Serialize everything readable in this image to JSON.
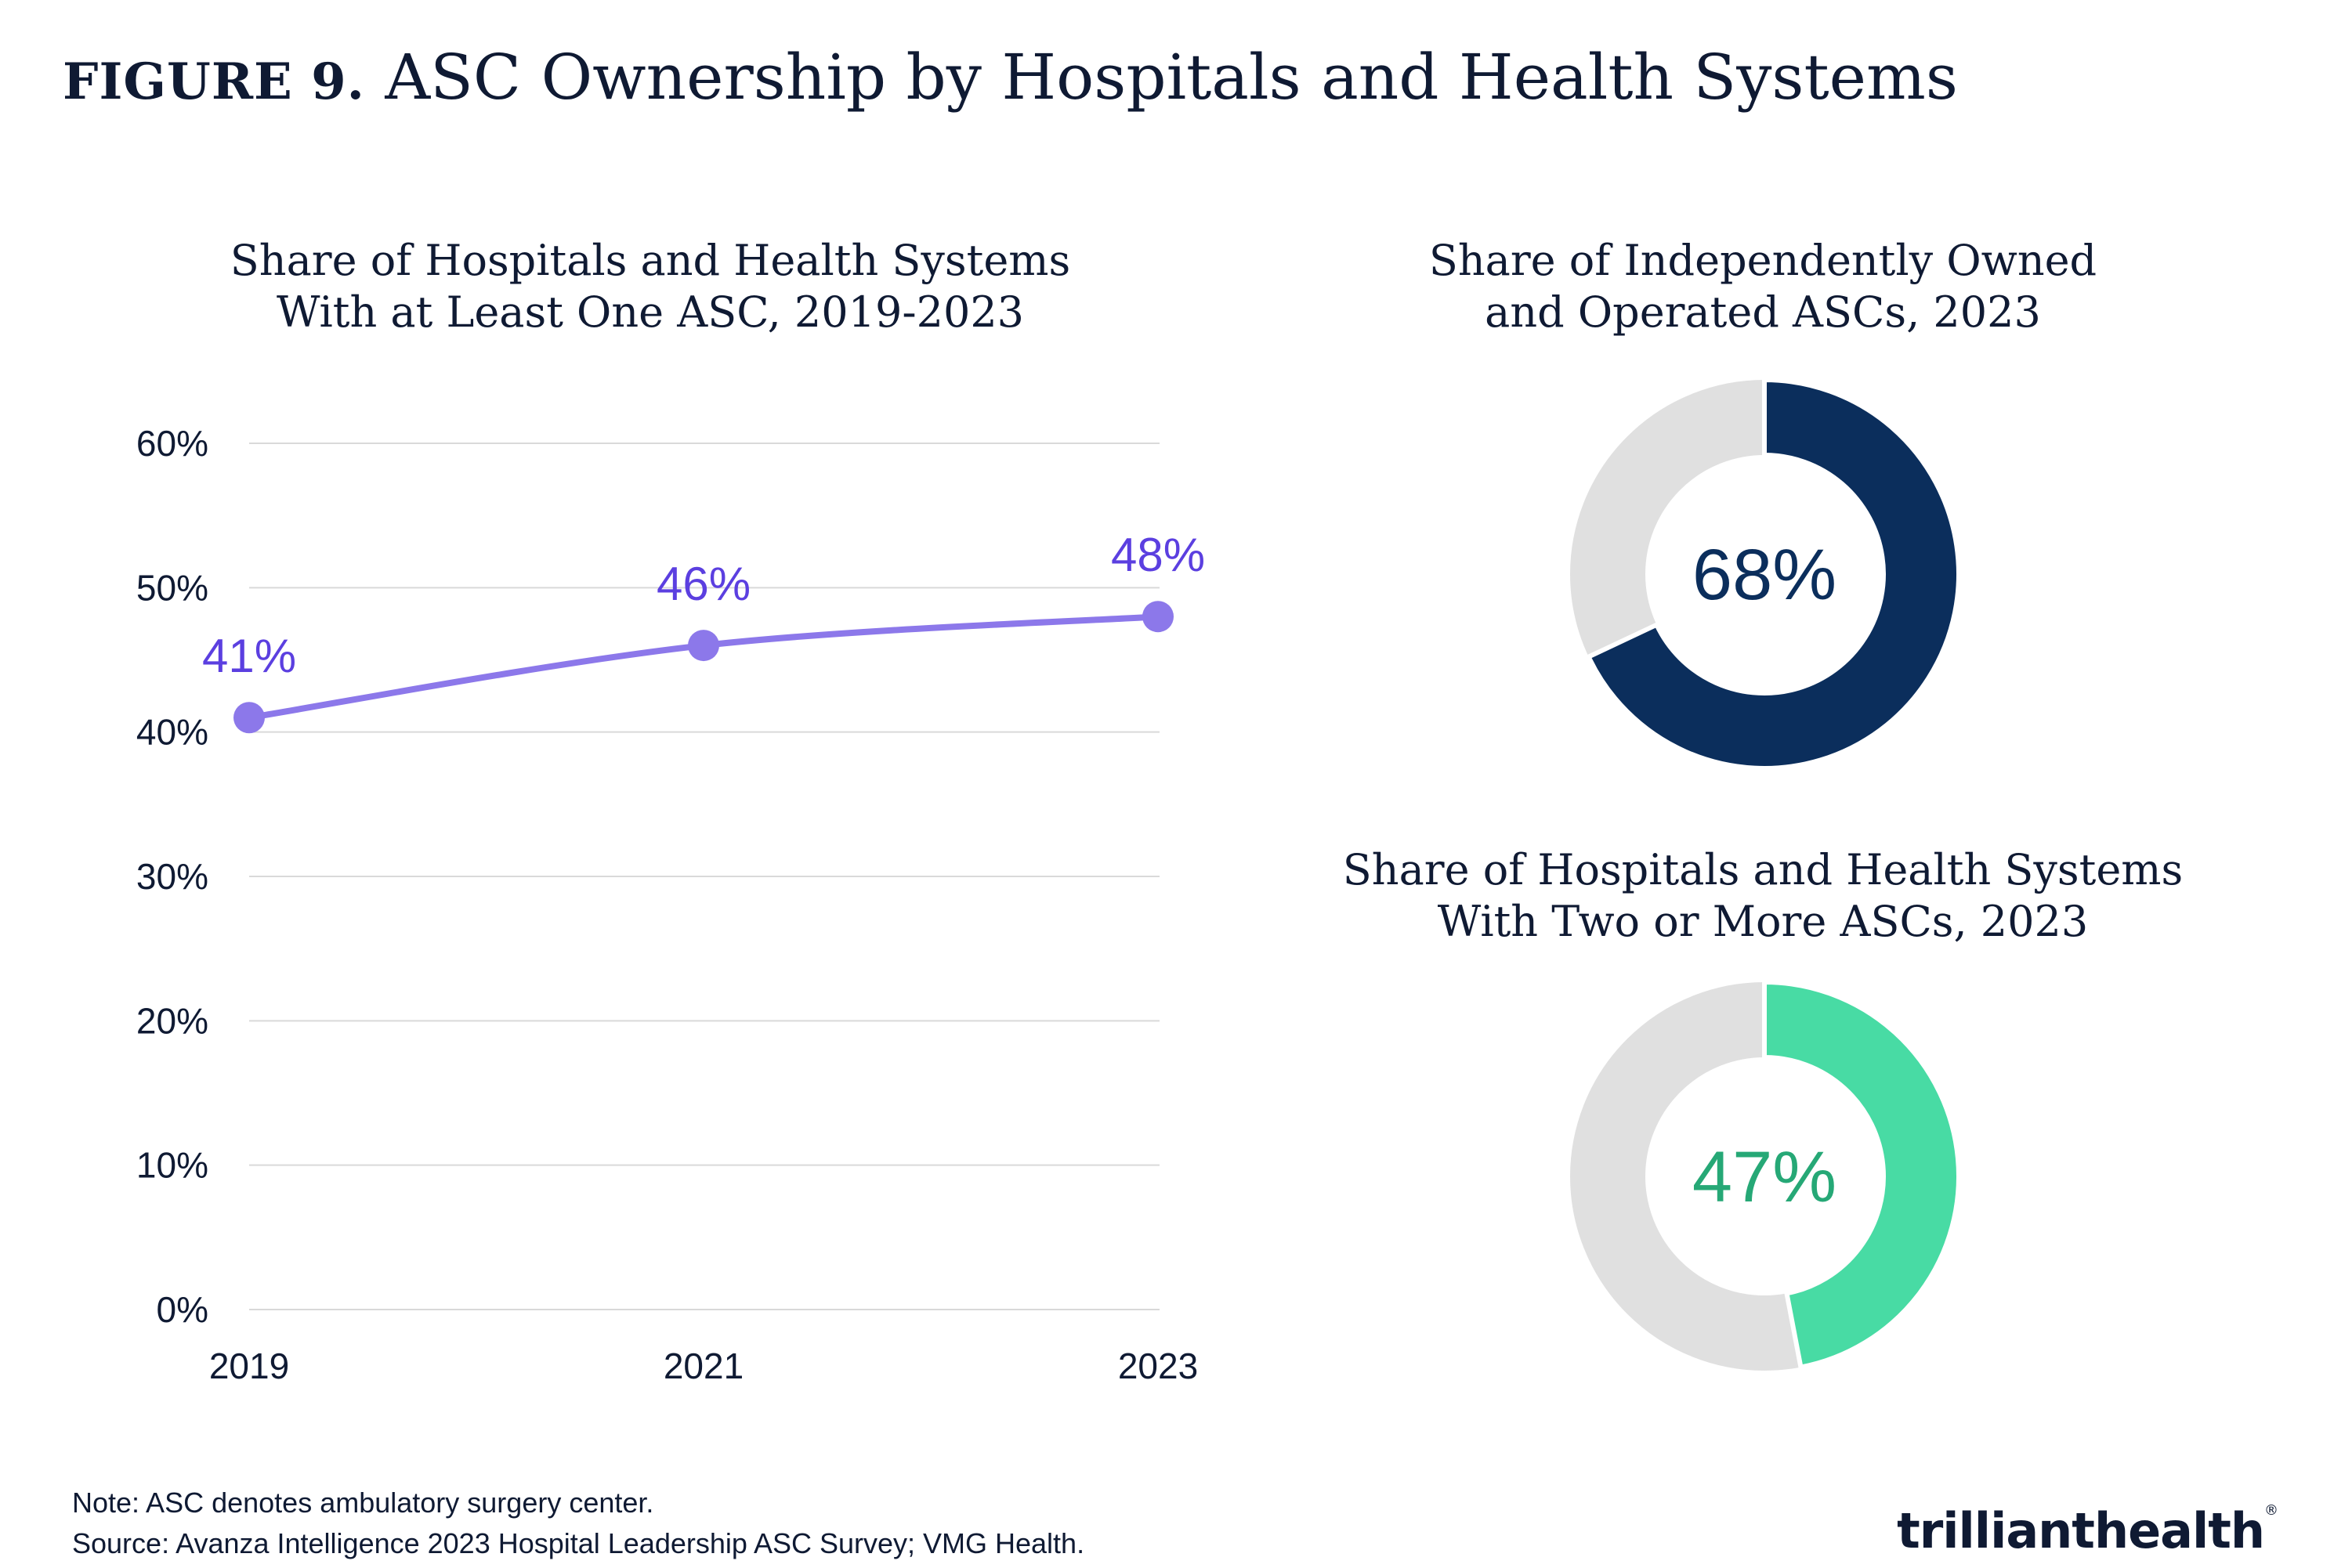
{
  "header": {
    "figure_label": "FIGURE 9.",
    "title": "ASC Ownership by Hospitals and Health Systems"
  },
  "colors": {
    "line": "#8c78ea",
    "line_label": "#5b3fe0",
    "grid": "#d9d9d9",
    "donut_track": "#e0e0e0",
    "donut1_fill": "#0b2e5c",
    "donut2_fill": "#48dba4",
    "donut2_text": "#26a876"
  },
  "chart_data": [
    {
      "type": "line",
      "title_line1": "Share of Hospitals and Health Systems",
      "title_line2": "With at Least One ASC, 2019-2023",
      "x": [
        "2019",
        "2021",
        "2023"
      ],
      "values": [
        41,
        46,
        48
      ],
      "data_labels": [
        "41%",
        "46%",
        "48%"
      ],
      "y_ticks": [
        0,
        10,
        20,
        30,
        40,
        50,
        60
      ],
      "y_tick_labels": [
        "0%",
        "10%",
        "20%",
        "30%",
        "40%",
        "50%",
        "60%"
      ],
      "ylim": [
        0,
        60
      ],
      "grid": true,
      "xlabel": "",
      "ylabel": ""
    },
    {
      "type": "pie",
      "title_line1": "Share of Independently Owned",
      "title_line2": "and Operated ASCs, 2023",
      "value": 68,
      "label": "68%"
    },
    {
      "type": "pie",
      "title_line1": "Share of Hospitals and Health Systems",
      "title_line2": "With Two or More ASCs, 2023",
      "value": 47,
      "label": "47%"
    }
  ],
  "footer": {
    "note": "Note: ASC denotes ambulatory surgery center.",
    "source": "Source: Avanza Intelligence 2023 Hospital Leadership ASC Survey; VMG Health.",
    "brand_part1": "trilliant",
    "brand_part2": "health",
    "brand_mark": "®"
  }
}
